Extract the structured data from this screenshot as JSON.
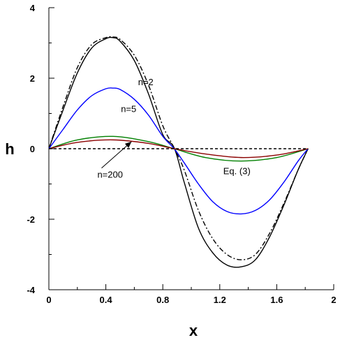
{
  "chart_data": {
    "type": "line",
    "xlabel": "x",
    "ylabel": "h",
    "xlim": [
      0,
      2
    ],
    "ylim": [
      -4,
      4
    ],
    "x_ticks": [
      0,
      0.4,
      0.8,
      1.2,
      1.6,
      2
    ],
    "x_tick_labels": [
      "0",
      "0.4",
      "0.8",
      "1.2",
      "1.6",
      "2"
    ],
    "y_ticks": [
      -4,
      -2,
      0,
      2,
      4
    ],
    "y_tick_labels": [
      "-4",
      "-2",
      "0",
      "2",
      "4"
    ],
    "grid": false,
    "series": [
      {
        "color": "#000000",
        "dash": "none",
        "x": [
          0,
          0.1,
          0.2,
          0.3,
          0.4,
          0.45,
          0.5,
          0.6,
          0.7,
          0.8,
          0.88,
          0.95,
          1.05,
          1.15,
          1.25,
          1.35,
          1.45,
          1.55,
          1.65,
          1.75,
          1.82
        ],
        "y": [
          0,
          1.1,
          2.15,
          2.85,
          3.12,
          3.15,
          3.05,
          2.5,
          1.55,
          0.4,
          0.02,
          -0.95,
          -2.25,
          -2.95,
          -3.3,
          -3.35,
          -3.15,
          -2.5,
          -1.6,
          -0.6,
          0
        ]
      },
      {
        "color": "#000000",
        "dash": "7,3,2,3",
        "x": [
          0,
          0.1,
          0.2,
          0.3,
          0.4,
          0.45,
          0.5,
          0.6,
          0.7,
          0.8,
          0.88,
          0.95,
          1.05,
          1.15,
          1.25,
          1.35,
          1.45,
          1.55,
          1.65,
          1.75,
          1.82
        ],
        "y": [
          0,
          1.2,
          2.3,
          2.95,
          3.15,
          3.17,
          3.1,
          2.65,
          1.8,
          0.65,
          0.02,
          -0.6,
          -1.75,
          -2.55,
          -3.0,
          -3.15,
          -3.0,
          -2.4,
          -1.55,
          -0.6,
          0
        ]
      },
      {
        "color": "#0000ff",
        "dash": "none",
        "x": [
          0,
          0.1,
          0.2,
          0.3,
          0.4,
          0.45,
          0.5,
          0.6,
          0.7,
          0.8,
          0.88,
          0.95,
          1.05,
          1.15,
          1.25,
          1.35,
          1.45,
          1.55,
          1.65,
          1.75,
          1.82
        ],
        "y": [
          0,
          0.55,
          1.1,
          1.5,
          1.7,
          1.72,
          1.68,
          1.4,
          0.95,
          0.35,
          0,
          -0.4,
          -1.0,
          -1.5,
          -1.78,
          -1.85,
          -1.75,
          -1.45,
          -0.95,
          -0.35,
          0
        ]
      },
      {
        "color": "#008000",
        "dash": "none",
        "x": [
          0,
          0.2,
          0.45,
          0.7,
          0.88,
          1.1,
          1.35,
          1.6,
          1.82
        ],
        "y": [
          0,
          0.25,
          0.35,
          0.2,
          0,
          -0.25,
          -0.35,
          -0.25,
          0
        ]
      },
      {
        "color": "#8b0000",
        "dash": "none",
        "x": [
          0,
          0.2,
          0.45,
          0.7,
          0.88,
          1.1,
          1.35,
          1.6,
          1.82
        ],
        "y": [
          0,
          0.18,
          0.25,
          0.15,
          0,
          -0.15,
          -0.25,
          -0.18,
          0
        ]
      },
      {
        "color": "#000000",
        "dash": "4,3",
        "x": [
          0,
          1.82
        ],
        "y": [
          0,
          0
        ]
      }
    ],
    "annotations": [
      {
        "text": "n=2",
        "x": 0.68,
        "y": 1.8
      },
      {
        "text": "n=5",
        "x": 0.56,
        "y": 1.04
      },
      {
        "text": "n=200",
        "x": 0.43,
        "y": -0.82
      },
      {
        "text": "Eq. (3)",
        "x": 1.32,
        "y": -0.72
      }
    ],
    "arrow": {
      "from_x": 0.37,
      "from_y": -0.55,
      "to_x": 0.58,
      "to_y": 0.2
    }
  }
}
